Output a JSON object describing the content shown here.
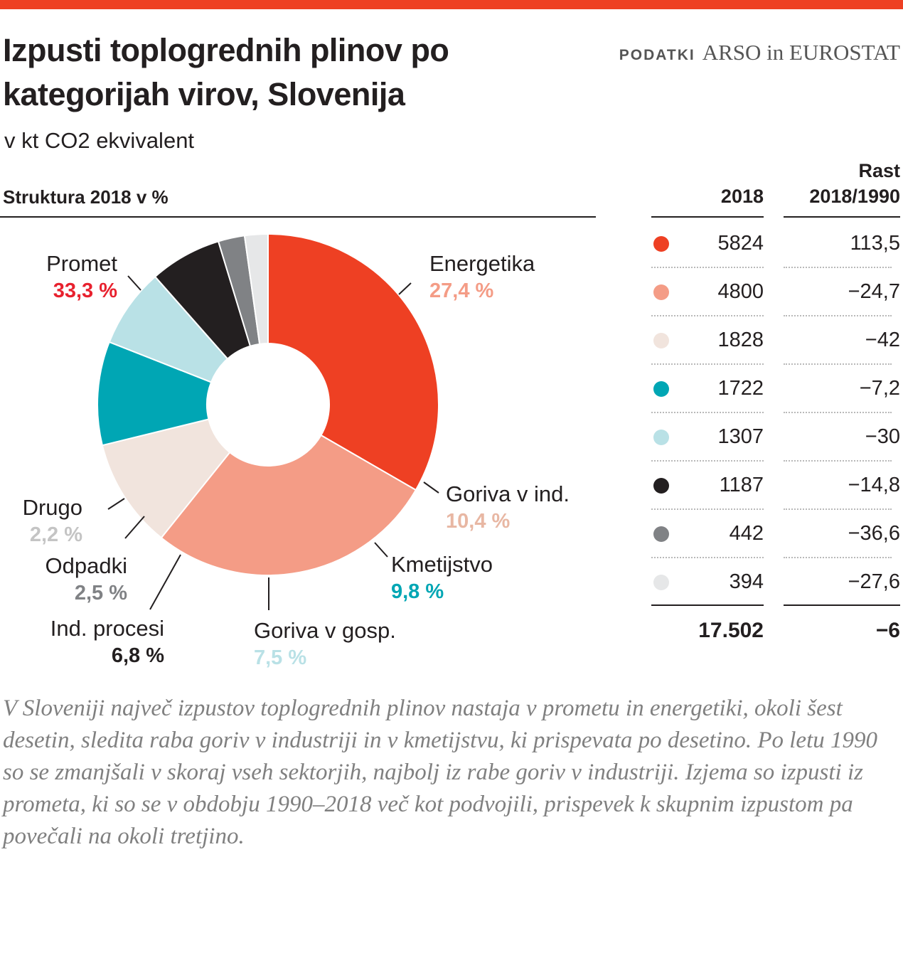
{
  "header": {
    "title": "Izpusti toplogrednih plinov po kategorijah virov, Slovenija",
    "subtitle": "v kt CO2 ekvivalent",
    "source_label": "PODATKI",
    "source_value": "ARSO in EUROSTAT"
  },
  "chart_data": {
    "type": "pie",
    "title": "Struktura 2018 v %",
    "donut": true,
    "slices": [
      {
        "label": "Promet",
        "value": 33.3,
        "value_label": "33,3 %",
        "color": "#ee4023",
        "label_color": "#e8212e"
      },
      {
        "label": "Energetika",
        "value": 27.4,
        "value_label": "27,4 %",
        "color": "#f49c86",
        "label_color": "#f49c86"
      },
      {
        "label": "Goriva v ind.",
        "value": 10.4,
        "value_label": "10,4 %",
        "color": "#f1e4dd",
        "label_color": "#e8b7a3"
      },
      {
        "label": "Kmetijstvo",
        "value": 9.8,
        "value_label": "9,8 %",
        "color": "#00a6b4",
        "label_color": "#00a6b4"
      },
      {
        "label": "Goriva v gosp.",
        "value": 7.5,
        "value_label": "7,5 %",
        "color": "#b9e1e6",
        "label_color": "#b9e1e6"
      },
      {
        "label": "Ind. procesi",
        "value": 6.8,
        "value_label": "6,8 %",
        "color": "#231f20",
        "label_color": "#231f20"
      },
      {
        "label": "Odpadki",
        "value": 2.5,
        "value_label": "2,5 %",
        "color": "#808285",
        "label_color": "#808285"
      },
      {
        "label": "Drugo",
        "value": 2.2,
        "value_label": "2,2 %",
        "color": "#e6e7e8",
        "label_color": "#c4c4c4"
      }
    ]
  },
  "table": {
    "col_2018": "2018",
    "col_growth_line1": "Rast",
    "col_growth_line2": "2018/1990",
    "rows": [
      {
        "value": "5824",
        "growth": "113,5"
      },
      {
        "value": "4800",
        "growth": "−24,7"
      },
      {
        "value": "1828",
        "growth": "−42"
      },
      {
        "value": "1722",
        "growth": "−7,2"
      },
      {
        "value": "1307",
        "growth": "−30"
      },
      {
        "value": "1187",
        "growth": "−14,8"
      },
      {
        "value": "442",
        "growth": "−36,6"
      },
      {
        "value": "394",
        "growth": "−27,6"
      }
    ],
    "total_value": "17.502",
    "total_growth": "−6"
  },
  "note": "V Sloveniji največ izpustov toplogrednih plinov nastaja v prometu in energetiki, okoli šest desetin, sledita raba goriv v industriji in v kmetijstvu, ki prispevata po desetino. Po letu 1990 so se zmanjšali v skoraj vseh sektorjih, najbolj iz rabe goriv v industriji. Izjema so izpusti iz prometa, ki so se v obdobju 1990–2018 več kot podvojili, prispevek k skupnim izpustom pa povečali na okoli tretjino."
}
